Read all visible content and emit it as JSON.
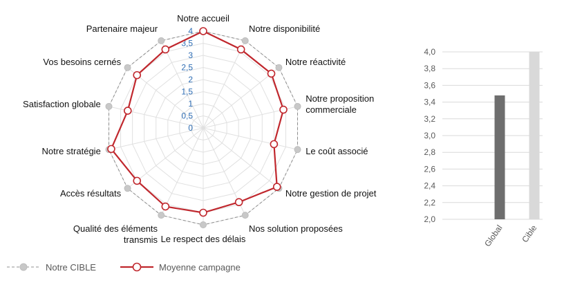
{
  "chart_data": [
    {
      "type": "radar",
      "categories": [
        "Notre accueil",
        "Notre disponibilité",
        "Notre réactivité",
        "Notre proposition commerciale",
        "Le coût associé",
        "Notre gestion de projet",
        "Nos solution proposées",
        "Le respect des délais",
        "Qualité des éléments transmis",
        "Accès résultats",
        "Notre stratégie",
        "Satisfaction globale",
        "Vos besoins cernés",
        "Partenaire majeur"
      ],
      "rlim": [
        0,
        4
      ],
      "ticks": [
        "0",
        "0,5",
        "1",
        "1,5",
        "2",
        "2,5",
        "3",
        "3,5",
        "4"
      ],
      "series": [
        {
          "name": "Notre CIBLE",
          "color": "#a6a6a6",
          "values": [
            4,
            4,
            4,
            4,
            4,
            4,
            4,
            4,
            4,
            4,
            4,
            4,
            4,
            4
          ]
        },
        {
          "name": "Moyenne campagne",
          "color": "#c0272d",
          "values": [
            4.0,
            3.6,
            3.6,
            3.4,
            3.0,
            3.9,
            3.4,
            3.5,
            3.6,
            3.5,
            3.9,
            3.2,
            3.5,
            3.6
          ]
        }
      ],
      "legend": "bottom-left"
    },
    {
      "type": "bar",
      "categories": [
        "Global",
        "Cible"
      ],
      "values": [
        3.48,
        4.0
      ],
      "colors": [
        "#6e6e6e",
        "#d9d9d9"
      ],
      "ylim": [
        2.0,
        4.0
      ],
      "yticks": [
        "2,0",
        "2,2",
        "2,4",
        "2,6",
        "2,8",
        "3,0",
        "3,2",
        "3,4",
        "3,6",
        "3,8",
        "4,0"
      ]
    }
  ]
}
